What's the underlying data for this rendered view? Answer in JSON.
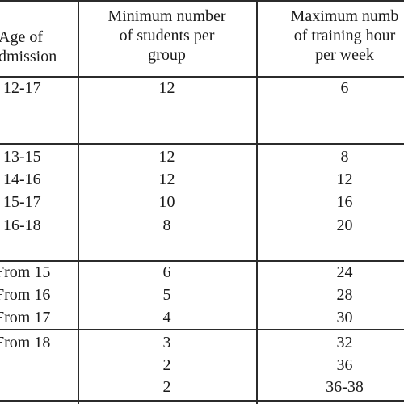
{
  "table": {
    "headers": {
      "age": [
        "Age of",
        "dmission"
      ],
      "min_students": [
        "Minimum number",
        "of students per",
        "group"
      ],
      "max_hours": [
        "Maximum numb",
        "of training hour",
        "per week"
      ]
    },
    "rows": [
      {
        "age": "12-17",
        "min": "12",
        "max": "6"
      },
      {
        "age": "13-15",
        "min": "12",
        "max": "8"
      },
      {
        "age": "14-16",
        "min": "12",
        "max": "12"
      },
      {
        "age": "15-17",
        "min": "10",
        "max": "16"
      },
      {
        "age": "16-18",
        "min": "8",
        "max": "20"
      },
      {
        "age": "From 15",
        "min": "6",
        "max": "24"
      },
      {
        "age": "From 16",
        "min": "5",
        "max": "28"
      },
      {
        "age": "From 17",
        "min": "4",
        "max": "30"
      },
      {
        "age": "From 18",
        "min": "3",
        "max": "32"
      },
      {
        "age": "",
        "min": "2",
        "max": "36"
      },
      {
        "age": "",
        "min": "2",
        "max": "36-38"
      }
    ]
  }
}
